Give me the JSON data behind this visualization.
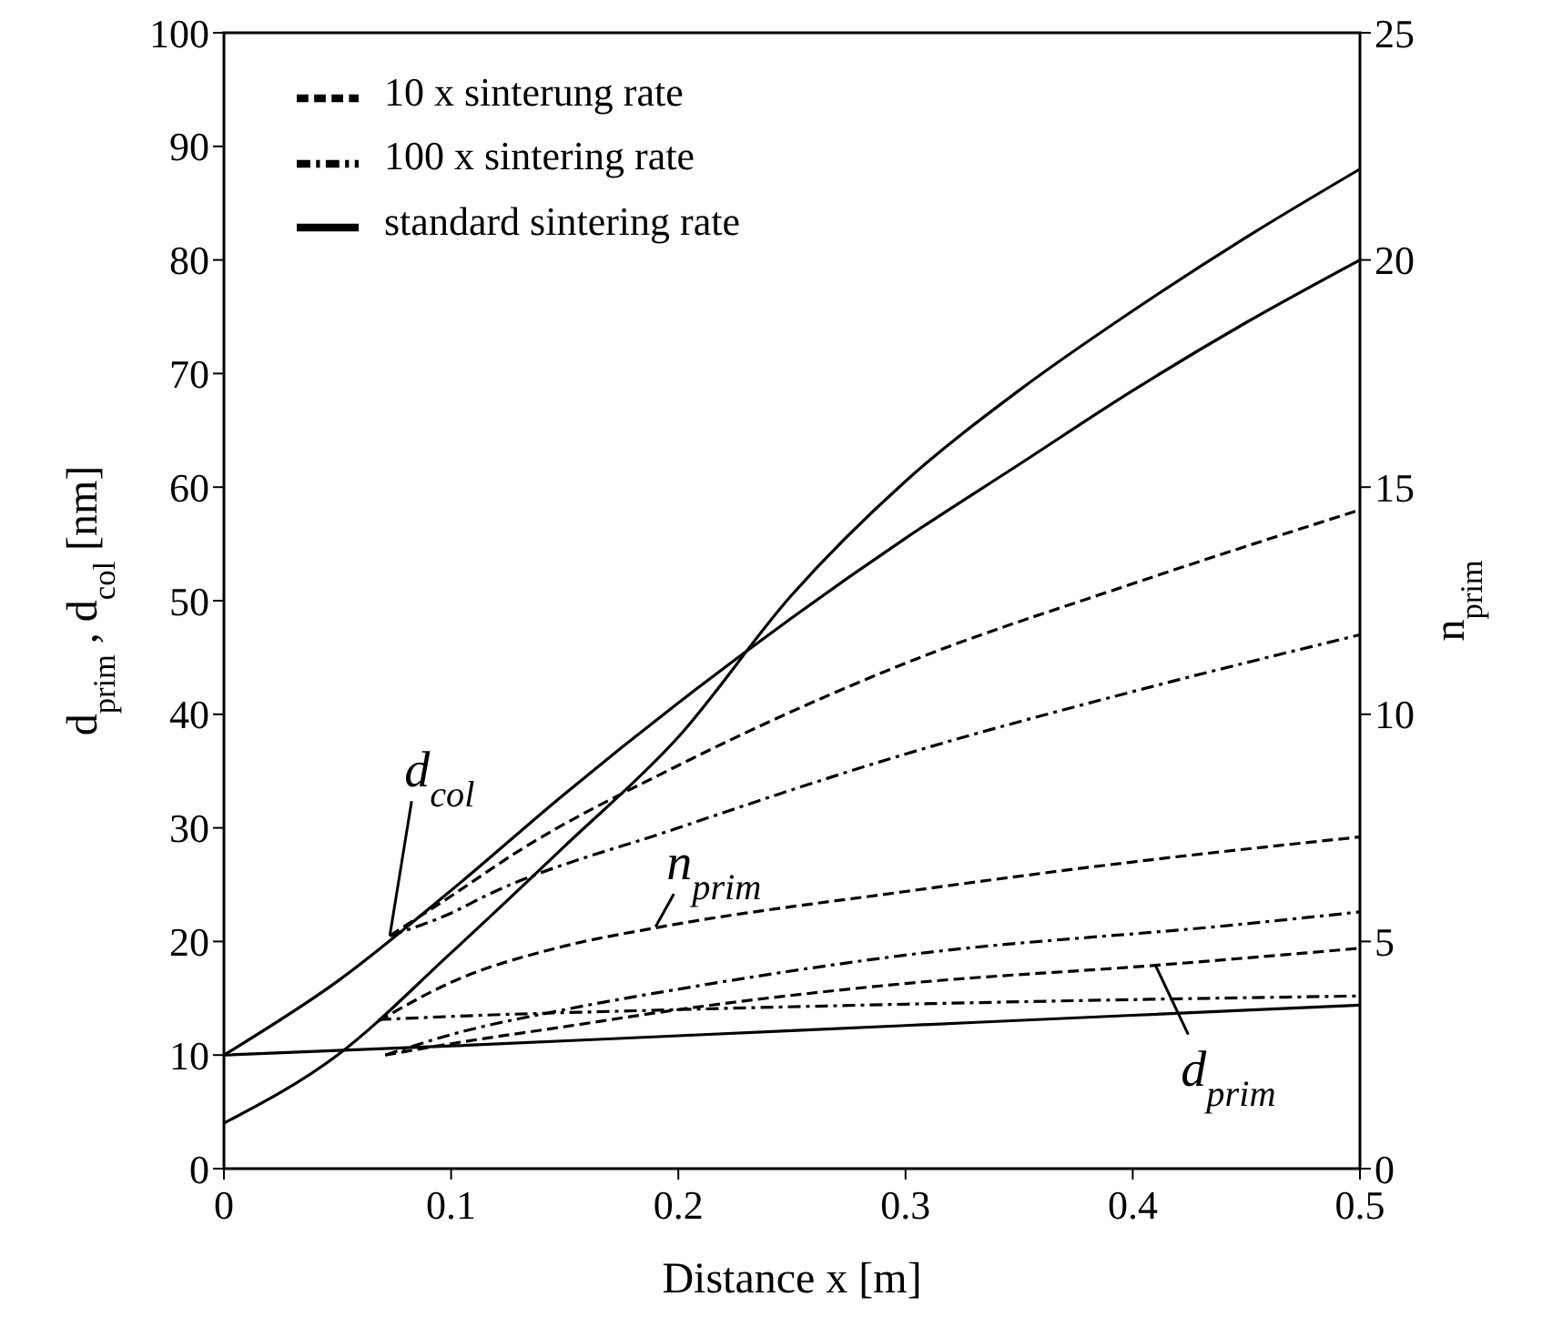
{
  "chart_data": {
    "type": "line",
    "xlabel": "Distance x [m]",
    "ylabel": "d$_{prim}$, d$_{col}$ [nm]",
    "y2label": "n$_{prim}$",
    "xlim": [
      0,
      0.5
    ],
    "xticks": [
      0,
      0.1,
      0.2,
      0.3,
      0.4,
      0.5
    ],
    "ylim": [
      0,
      100
    ],
    "yticks": [
      0,
      10,
      20,
      30,
      40,
      50,
      60,
      70,
      80,
      90,
      100
    ],
    "y2lim": [
      0,
      25
    ],
    "y2ticks": [
      0,
      5,
      10,
      15,
      20,
      25
    ],
    "legend": "top left",
    "grid": false,
    "marker": "none",
    "annotations": [
      {
        "text": "d$_{col}$",
        "x": 0.073,
        "y": 20.5
      },
      {
        "text": "n$_{prim}$",
        "x": 0.19,
        "y": 21.3
      },
      {
        "text": "d$_{prim}$",
        "x": 0.41,
        "y": 17.9
      }
    ],
    "series": [
      {
        "name": "100 x sintering rate",
        "color": "#000000",
        "line_style": "dashdot",
        "x": [
          0.073,
          0.1,
          0.115,
          0.2,
          0.3,
          0.4,
          0.5
        ],
        "values": [
          20.5,
          22.5,
          24,
          30,
          36.5,
          42,
          47
        ]
      },
      {
        "name": "10 x sinterung rate",
        "color": "#000000",
        "line_style": "dashed",
        "x": [
          0.073,
          0.1,
          0.13,
          0.2,
          0.3,
          0.4,
          0.5
        ],
        "values": [
          20.5,
          24,
          28,
          35.5,
          44.5,
          51.5,
          58
        ]
      },
      {
        "name": "standard sintering rate",
        "color": "#000000",
        "line_style": "solid",
        "x": [
          0,
          0.05,
          0.1,
          0.15,
          0.2,
          0.25,
          0.3,
          0.35,
          0.4,
          0.45,
          0.5
        ],
        "values": [
          10,
          16.5,
          24.5,
          33,
          41,
          48.5,
          55.5,
          62,
          68.5,
          74.5,
          80
        ]
      },
      {
        "color": "#000000",
        "line_style": "solid",
        "axis": "y2",
        "x": [
          0,
          0.05,
          0.1,
          0.15,
          0.2,
          0.25,
          0.3,
          0.35,
          0.4,
          0.45,
          0.5
        ],
        "values": [
          1,
          2.5,
          4.75,
          7.1,
          9.5,
          12.63,
          15.13,
          17.13,
          18.88,
          20.5,
          22
        ]
      },
      {
        "color": "#000000",
        "line_style": "dashed",
        "axis": "y2",
        "x": [
          0.068,
          0.1,
          0.15,
          0.19,
          0.3,
          0.4,
          0.5
        ],
        "values": [
          3.25,
          4.1,
          4.9,
          5.3,
          6.1,
          6.75,
          7.3
        ]
      },
      {
        "color": "#000000",
        "line_style": "dashdot",
        "axis": "y2",
        "x": [
          0.068,
          0.1,
          0.2,
          0.3,
          0.4,
          0.5
        ],
        "values": [
          3.28,
          3.35,
          3.5,
          3.62,
          3.72,
          3.8
        ]
      },
      {
        "color": "#000000",
        "line_style": "solid",
        "x": [
          0,
          0.1,
          0.2,
          0.3,
          0.4,
          0.5
        ],
        "values": [
          10,
          10.8,
          11.7,
          12.6,
          13.5,
          14.4
        ]
      },
      {
        "color": "#000000",
        "line_style": "dashed",
        "x": [
          0.071,
          0.1,
          0.15,
          0.2,
          0.3,
          0.41,
          0.5
        ],
        "values": [
          10,
          11,
          12.5,
          14,
          16.3,
          17.9,
          19.4
        ]
      },
      {
        "color": "#000000",
        "line_style": "dashdot",
        "x": [
          0.071,
          0.1,
          0.15,
          0.2,
          0.3,
          0.447,
          0.5
        ],
        "values": [
          10,
          11.8,
          14,
          15.8,
          18.8,
          21.5,
          22.6
        ]
      }
    ]
  }
}
